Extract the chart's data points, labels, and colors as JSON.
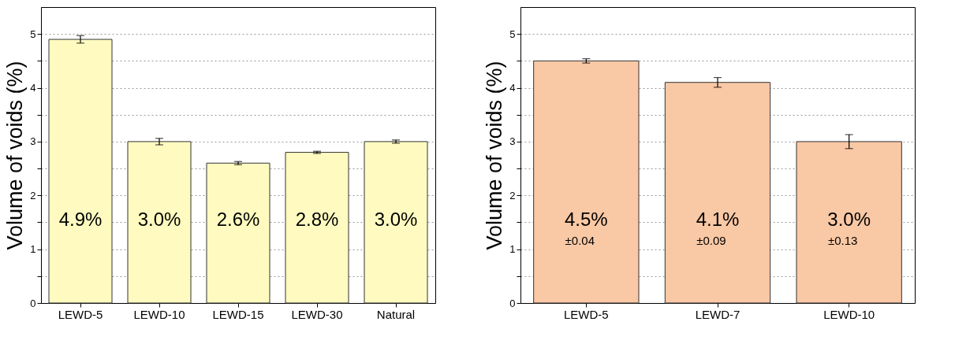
{
  "chart_data": [
    {
      "type": "bar",
      "ylabel": "Volume of voids (%)",
      "categories": [
        "LEWD-5",
        "LEWD-10",
        "LEWD-15",
        "LEWD-30",
        "Natural"
      ],
      "series": [
        {
          "color": "#fffbc0",
          "values": [
            4.9,
            3.0,
            2.6,
            2.8,
            3.0
          ],
          "errors": [
            0.07,
            0.06,
            0.03,
            0.02,
            0.03
          ],
          "value_labels": [
            "4.9%",
            "3.0%",
            "2.6%",
            "2.8%",
            "3.0%"
          ]
        }
      ],
      "ylim": [
        0,
        5.5
      ],
      "yticks": [
        0,
        {
          "value": 0.5,
          "label": null
        },
        1,
        {
          "value": 1.5,
          "label": null
        },
        2,
        {
          "value": 2.5,
          "label": null
        },
        3,
        {
          "value": 3.5,
          "label": null
        },
        4,
        {
          "value": 4.5,
          "label": null
        },
        5
      ],
      "grid": "y"
    },
    {
      "type": "bar",
      "ylabel": "Volume of voids (%)",
      "categories": [
        "LEWD-5",
        "LEWD-7",
        "LEWD-10"
      ],
      "series": [
        {
          "color": "#f9c8a5",
          "values": [
            4.5,
            4.1,
            3.0
          ],
          "errors": [
            0.04,
            0.09,
            0.13
          ],
          "value_labels": [
            "4.5%",
            "4.1%",
            "3.0%"
          ]
        }
      ],
      "annotations": [
        "±0.04",
        "±0.09",
        "±0.13"
      ],
      "ylim": [
        0,
        5.5
      ],
      "yticks": [
        0,
        {
          "value": 0.5,
          "label": null
        },
        1,
        {
          "value": 1.5,
          "label": null
        },
        2,
        {
          "value": 2.5,
          "label": null
        },
        3,
        {
          "value": 3.5,
          "label": null
        },
        4,
        {
          "value": 4.5,
          "label": null
        },
        5
      ],
      "grid": "y"
    }
  ]
}
